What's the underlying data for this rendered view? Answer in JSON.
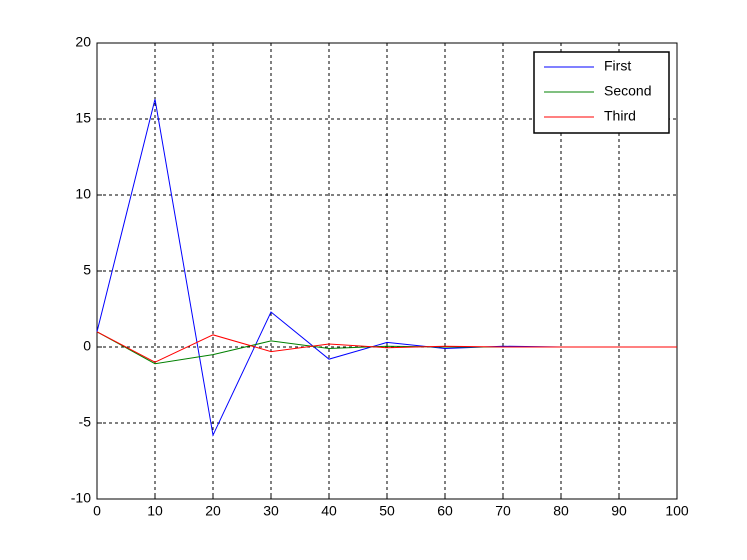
{
  "chart_data": {
    "type": "line",
    "x": [
      0,
      10,
      20,
      30,
      40,
      50,
      60,
      70,
      80,
      90,
      100
    ],
    "series": [
      {
        "name": "First",
        "color": "#0000ff",
        "values": [
          1,
          16.3,
          -5.8,
          2.3,
          -0.8,
          0.3,
          -0.1,
          0.05,
          0,
          0,
          0
        ]
      },
      {
        "name": "Second",
        "color": "#008000",
        "values": [
          1,
          -1.1,
          -0.5,
          0.4,
          -0.1,
          0.05,
          0,
          0,
          0,
          0,
          0
        ]
      },
      {
        "name": "Third",
        "color": "#ff0000",
        "values": [
          1,
          -1,
          0.8,
          -0.3,
          0.2,
          -0.05,
          0.05,
          0,
          0,
          0,
          0
        ]
      }
    ],
    "xlim": [
      0,
      100
    ],
    "xticks": [
      0,
      10,
      20,
      30,
      40,
      50,
      60,
      70,
      80,
      90,
      100
    ],
    "ylim": [
      -10,
      20
    ],
    "yticks": [
      -10,
      -5,
      0,
      5,
      10,
      15,
      20
    ],
    "grid": true,
    "legend": "top-right"
  }
}
